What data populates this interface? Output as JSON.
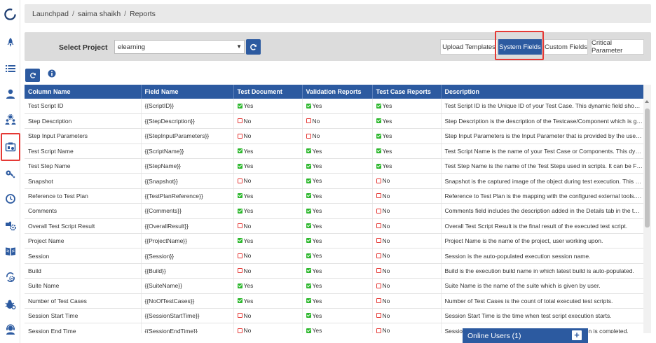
{
  "breadcrumb": {
    "items": [
      "Launchpad",
      "saima shaikh",
      "Reports"
    ],
    "separator": "/"
  },
  "project": {
    "label": "Select Project",
    "selected": "elearning",
    "caret": "▼"
  },
  "tabs": {
    "upload_templates": "Upload Templates",
    "system_fields": "System Fields",
    "custom_fields": "Custom Fields",
    "critical_parameter": "Critical Parameter"
  },
  "table": {
    "headers": [
      "Column Name",
      "Field Name",
      "Test Document",
      "Validation Reports",
      "Test Case Reports",
      "Description"
    ],
    "yes_label": "Yes",
    "no_label": "No",
    "rows": [
      {
        "column": "Test Script ID",
        "field": "{{ScriptID}}",
        "doc": "Yes",
        "val": "Yes",
        "tc": "Yes",
        "desc": "Test Script ID is the Unique ID of your Test Case. This dynamic field should be a..."
      },
      {
        "column": "Step Description",
        "field": "{{StepDescription}}",
        "doc": "No",
        "val": "No",
        "tc": "Yes",
        "desc": "Step Description is the description of the Testcase/Component which is given b..."
      },
      {
        "column": "Step Input Parameters",
        "field": "{{StepInputParameters}}",
        "doc": "No",
        "val": "No",
        "tc": "Yes",
        "desc": "Step Input Parameters is the Input Parameter that is provided by the user to a ..."
      },
      {
        "column": "Test Script Name",
        "field": "{{ScriptName}}",
        "doc": "Yes",
        "val": "Yes",
        "tc": "Yes",
        "desc": "Test Script Name is the name of your Test Case or Components. This dynamic fi..."
      },
      {
        "column": "Test Step Name",
        "field": "{{StepName}}",
        "doc": "Yes",
        "val": "Yes",
        "tc": "Yes",
        "desc": "Test Step Name is the name of the Test Steps used in scripts. It can be Function ..."
      },
      {
        "column": "Snapshot",
        "field": "{{Snapshot}}",
        "doc": "No",
        "val": "Yes",
        "tc": "No",
        "desc": "Snapshot is the captured image of the object during test execution. This dyna..."
      },
      {
        "column": "Reference to Test Plan",
        "field": "{{TestPlanReference}}",
        "doc": "Yes",
        "val": "Yes",
        "tc": "No",
        "desc": "Reference to Test Plan is the mapping with the configured external tools. This d..."
      },
      {
        "column": "Comments",
        "field": "{{Comments}}",
        "doc": "Yes",
        "val": "Yes",
        "tc": "No",
        "desc": "Comments field includes the description added in the Details tab in the test cas..."
      },
      {
        "column": "Overall Test Script Result",
        "field": "{{OverallResult}}",
        "doc": "No",
        "val": "Yes",
        "tc": "No",
        "desc": "Overall Test Script Result is the final result of the executed test script."
      },
      {
        "column": "Project Name",
        "field": "{{ProjectName}}",
        "doc": "Yes",
        "val": "Yes",
        "tc": "No",
        "desc": "Project Name is the name of the project, user working upon."
      },
      {
        "column": "Session",
        "field": "{{Session}}",
        "doc": "No",
        "val": "Yes",
        "tc": "No",
        "desc": "Session is the auto-populated execution session name."
      },
      {
        "column": "Build",
        "field": "{{Build}}",
        "doc": "No",
        "val": "Yes",
        "tc": "No",
        "desc": "Build is the execution build name in which latest build is auto-populated."
      },
      {
        "column": "Suite Name",
        "field": "{{SuiteName}}",
        "doc": "Yes",
        "val": "Yes",
        "tc": "No",
        "desc": "Suite Name is the name of the suite which is given by user."
      },
      {
        "column": "Number of Test Cases",
        "field": "{{NoOfTestCases}}",
        "doc": "Yes",
        "val": "Yes",
        "tc": "No",
        "desc": "Number of Test Cases is the count of total executed test scripts."
      },
      {
        "column": "Session Start Time",
        "field": "{{SessionStartTime}}",
        "doc": "No",
        "val": "Yes",
        "tc": "No",
        "desc": "Session Start Time is the time when test script execution starts."
      },
      {
        "column": "Session End Time",
        "field": "{{SessionEndTime}}",
        "doc": "No",
        "val": "Yes",
        "tc": "No",
        "desc": "Session End Time is the time when test script execution is completed."
      }
    ]
  },
  "online_users": {
    "label": "Online Users (1)",
    "plus": "+"
  },
  "colors": {
    "primary": "#2c5aa0",
    "highlight": "#e53935",
    "yes": "#2eb82e",
    "no": "#e53935",
    "sidebar_icon": "#2c5aa0"
  },
  "sidebar": {
    "icons": [
      "logo-icon",
      "rocket-icon",
      "list-icon",
      "user-icon",
      "users-gear-icon",
      "reports-icon",
      "key-icon",
      "clock-icon",
      "puzzle-gear-icon",
      "book-icon",
      "settings-cycle-icon",
      "bug-gear-icon",
      "support-agent-icon"
    ]
  }
}
